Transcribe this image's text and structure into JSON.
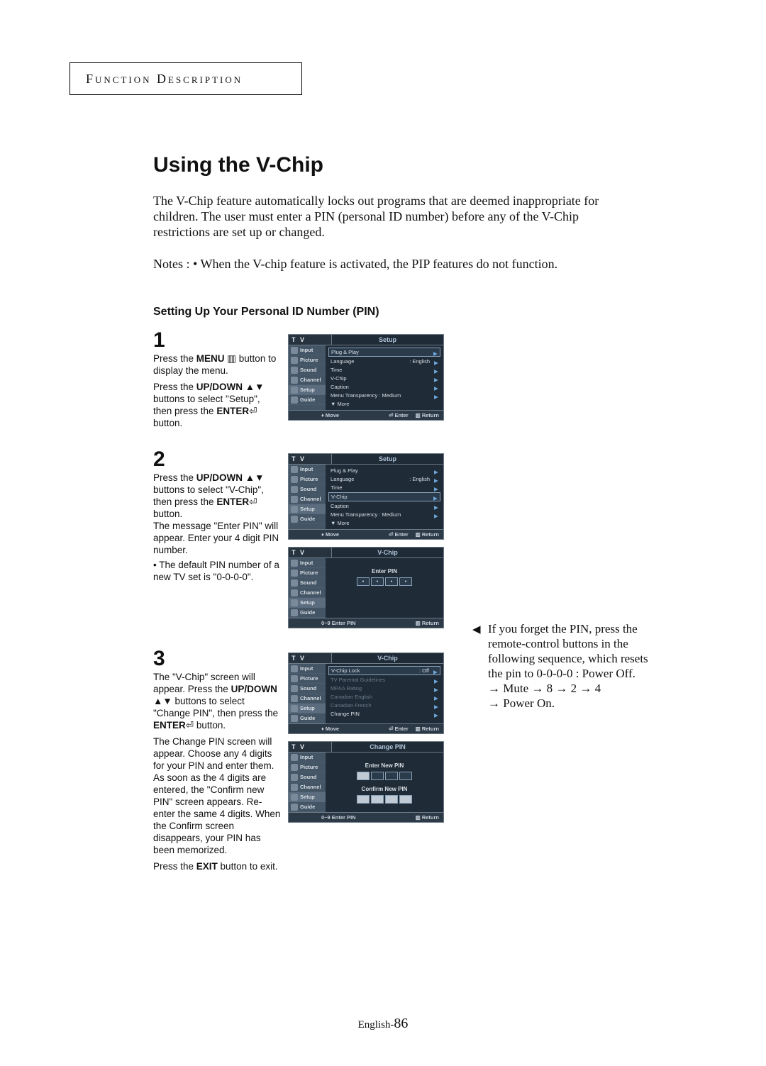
{
  "colors": {
    "page_bg": "#ffffff",
    "outer_bg": "#bfbfbf",
    "osd_frame": "#6c7a85",
    "osd_bg_dark": "#1f2b37",
    "osd_bg_mid": "#3a4a5a",
    "osd_side": "#445566",
    "osd_hl_border": "#8aa0b6",
    "osd_text": "#e8ecef",
    "osd_dim": "#6a7a8a",
    "accent_blue": "#6fa8dc"
  },
  "header_box": "Function Description",
  "title": "Using the V-Chip",
  "intro": "The V-Chip feature automatically locks out programs that are deemed inappropriate for children. The user must enter a PIN (personal ID number) before any of the V-Chip restrictions are set up or changed.",
  "notes": "Notes : • When the V-chip feature is activated, the PIP features do not function.",
  "subheading": "Setting Up Your Personal ID Number (PIN)",
  "osd": {
    "tv": "T V",
    "side_items": [
      "Input",
      "Picture",
      "Sound",
      "Channel",
      "Setup",
      "Guide"
    ],
    "titles": {
      "setup": "Setup",
      "vchip": "V-Chip",
      "change_pin": "Change PIN"
    },
    "setup_rows": [
      {
        "label": "Plug & Play",
        "val": "",
        "hl": false
      },
      {
        "label": "Language",
        "val": ": English",
        "hl": false
      },
      {
        "label": "Time",
        "val": "",
        "hl": false
      },
      {
        "label": "V-Chip",
        "val": "",
        "hl": false
      },
      {
        "label": "Caption",
        "val": "",
        "hl": false
      },
      {
        "label": "Menu Transparency : Medium",
        "val": "",
        "hl": false
      },
      {
        "label": "▼ More",
        "val": "",
        "hl": false
      }
    ],
    "vchip_rows": [
      {
        "label": "V-Chip Lock",
        "val": ": Off",
        "hl": true
      },
      {
        "label": "TV Parental Guidelines",
        "val": "",
        "dis": true
      },
      {
        "label": "MPAA Rating",
        "val": "",
        "dis": true
      },
      {
        "label": "Canadian English",
        "val": "",
        "dis": true
      },
      {
        "label": "Canadian French",
        "val": "",
        "dis": true
      },
      {
        "label": "Change PIN",
        "val": "",
        "hl": false
      }
    ],
    "enter_pin": "Enter PIN",
    "enter_new_pin": "Enter New PIN",
    "confirm_new_pin": "Confirm New PIN",
    "foot_move": "♦ Move",
    "foot_enter": "⏎ Enter",
    "foot_return": "▥ Return",
    "foot_09": "0~9 Enter PIN"
  },
  "steps": {
    "s1": {
      "num": "1",
      "p1a": "Press the ",
      "p1b": "MENU",
      "p1c": " ▥ button to display the menu.",
      "p2a": "Press the ",
      "p2b": "UP/DOWN",
      "p2c": " ▲▼ buttons to select \"Setup\", then press the ",
      "p2d": "ENTER",
      "p2e": "⏎ button."
    },
    "s2": {
      "num": "2",
      "p1a": "Press the ",
      "p1b": "UP/DOWN",
      "p1c": " ▲▼ buttons  to select \"V-Chip\", then press the ",
      "p1d": "ENTER",
      "p1e": "⏎ button.",
      "p2": "The message \"Enter PIN\" will appear. Enter your 4 digit PIN number.",
      "p3": "• The default PIN number of a new TV set is \"0-0-0-0\"."
    },
    "s3": {
      "num": "3",
      "p1a": "The \"V-Chip\" screen will appear. Press the ",
      "p1b": "UP/DOWN",
      "p1c": " ▲▼  buttons to select \"Change PIN\", then press the ",
      "p1d": "ENTER",
      "p1e": "⏎  button.",
      "p2": "The Change PIN screen will appear. Choose any 4 digits for your PIN and enter them. As soon as the 4 digits are entered, the \"Confirm new PIN\" screen appears. Re-enter the same 4 digits. When the Confirm screen disappears, your PIN has been memorized.",
      "p3a": "Press the ",
      "p3b": "EXIT",
      "p3c": " button to exit."
    }
  },
  "side_note": {
    "tri": "◀",
    "l1": "If you forget the PIN, press the remote-control buttons in the following sequence, which resets the pin to 0-0-0-0 : Power Off.",
    "l2": "→ Mute → 8 → 2 → 4",
    "l3": "→ Power On."
  },
  "page_num_prefix": "English-",
  "page_num": "86"
}
